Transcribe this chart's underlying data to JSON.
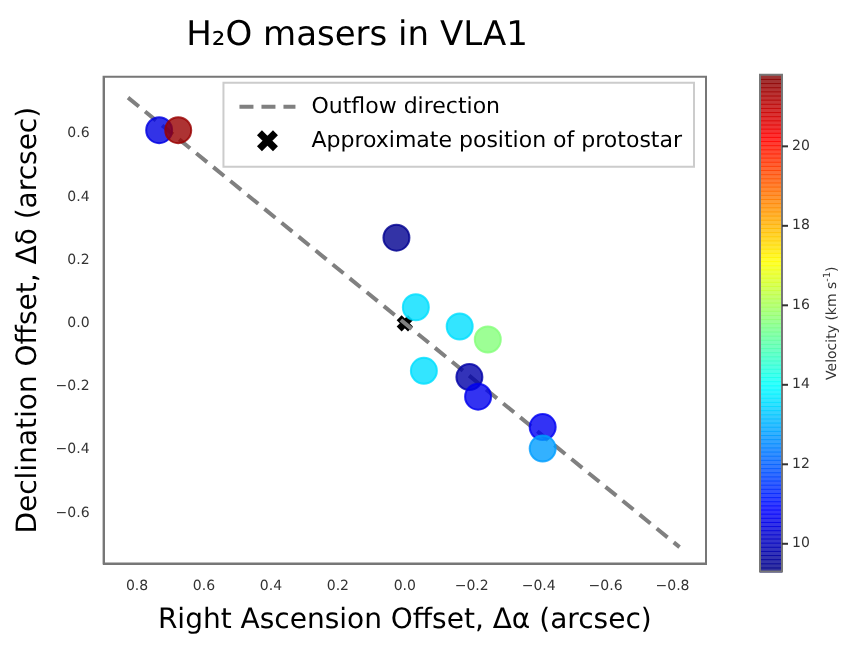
{
  "chart_data": {
    "type": "scatter",
    "title": "H₂O masers in VLA1",
    "xlabel": "Right Ascension Offset, Δα (arcsec)",
    "ylabel": "Declination Offset, Δδ (arcsec)",
    "clabel": "Velocity (km s$^{-1}$)",
    "xlim": [
      0.9,
      -0.9
    ],
    "ylim": [
      -0.76,
      0.78
    ],
    "xticks": [
      0.8,
      0.6,
      0.4,
      0.2,
      {
        "value": 0,
        "label": "0.0"
      },
      {
        "value": -0.2,
        "label": "−0.2"
      },
      {
        "value": -0.4,
        "label": "−0.4"
      },
      {
        "value": -0.6,
        "label": "−0.6"
      },
      {
        "value": -0.8,
        "label": "−0.8"
      }
    ],
    "yticks": [
      {
        "value": -0.6,
        "label": "−0.6"
      },
      {
        "value": -0.4,
        "label": "−0.4"
      },
      {
        "value": -0.2,
        "label": "−0.2"
      },
      {
        "value": 0,
        "label": "0.0"
      },
      0.2,
      0.4,
      0.6
    ],
    "clim": [
      9.3,
      21.8
    ],
    "cticks": [
      10,
      12,
      14,
      16,
      18,
      20
    ],
    "legend": "top right",
    "grid": false,
    "series": [
      {
        "marker": "circle",
        "x": [
          0.734,
          0.677,
          0.025,
          -0.033,
          -0.164,
          -0.248,
          -0.057,
          -0.193,
          -0.219,
          -0.412,
          -0.412
        ],
        "values": [
          0.611,
          0.611,
          0.271,
          0.051,
          -0.01,
          -0.051,
          -0.15,
          -0.17,
          -0.232,
          -0.328,
          -0.396
        ],
        "cvalues": [
          10.5,
          21.5,
          9.5,
          13.6,
          13.6,
          15.6,
          13.6,
          9.8,
          10.65,
          10.7,
          12.8
        ],
        "colors": [
          "#0000e1",
          "#980000",
          "#000090",
          "#00dfff",
          "#00dfff",
          "#84ff7b",
          "#00dfff",
          "#0000a8",
          "#0000ee",
          "#0000f2",
          "#009eff"
        ]
      },
      {
        "type": "line",
        "name": "Outflow direction",
        "color": "#808080",
        "line_style": "dashed",
        "marker": "none",
        "x": [
          0.827,
          -0.821
        ],
        "values": [
          0.714,
          -0.708
        ]
      },
      {
        "type": "scatter",
        "name": "Approximate position of protostar",
        "color": "#000000",
        "marker": "cross",
        "x": [
          0
        ],
        "values": [
          0
        ]
      }
    ]
  }
}
